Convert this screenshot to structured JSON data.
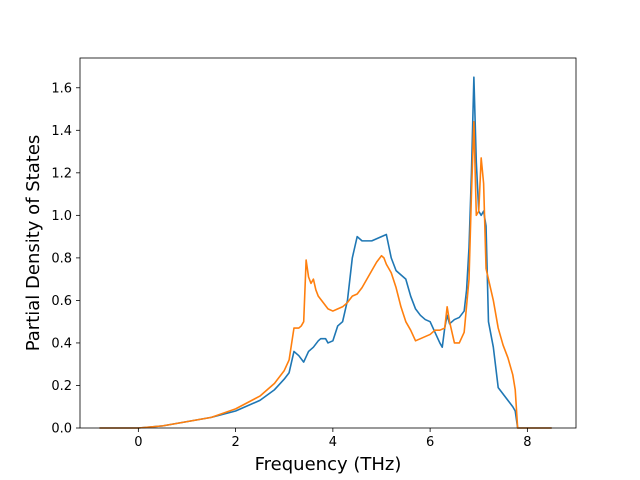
{
  "chart_data": {
    "type": "line",
    "title": "",
    "xlabel": "Frequency (THz)",
    "ylabel": "Partial Density of States",
    "xlim": [
      -1.2,
      9.0
    ],
    "ylim": [
      0.0,
      1.74
    ],
    "xticks": [
      0,
      2,
      4,
      6,
      8
    ],
    "xtick_labels": [
      "0",
      "2",
      "4",
      "6",
      "8"
    ],
    "yticks": [
      0.0,
      0.2,
      0.4,
      0.6,
      0.8,
      1.0,
      1.2,
      1.4,
      1.6
    ],
    "ytick_labels": [
      "0.0",
      "0.2",
      "0.4",
      "0.6",
      "0.8",
      "1.0",
      "1.2",
      "1.4",
      "1.6"
    ],
    "grid": false,
    "legend": "none",
    "series": [
      {
        "color": "#1f77b4",
        "x": [
          -0.8,
          -0.2,
          0.0,
          0.5,
          1.0,
          1.5,
          2.0,
          2.5,
          2.8,
          3.0,
          3.1,
          3.2,
          3.3,
          3.4,
          3.5,
          3.6,
          3.7,
          3.75,
          3.85,
          3.9,
          4.0,
          4.1,
          4.2,
          4.25,
          4.3,
          4.35,
          4.4,
          4.5,
          4.6,
          4.7,
          4.8,
          4.9,
          5.0,
          5.1,
          5.2,
          5.3,
          5.4,
          5.5,
          5.6,
          5.7,
          5.8,
          5.9,
          6.0,
          6.1,
          6.2,
          6.25,
          6.3,
          6.35,
          6.4,
          6.5,
          6.6,
          6.7,
          6.75,
          6.8,
          6.85,
          6.9,
          6.95,
          7.0,
          7.05,
          7.1,
          7.15,
          7.2,
          7.3,
          7.4,
          7.5,
          7.6,
          7.7,
          7.75,
          7.8,
          8.0,
          8.5
        ],
        "y": [
          0.0,
          0.0,
          0.0,
          0.01,
          0.03,
          0.05,
          0.08,
          0.13,
          0.18,
          0.23,
          0.26,
          0.36,
          0.34,
          0.31,
          0.36,
          0.38,
          0.41,
          0.42,
          0.42,
          0.4,
          0.41,
          0.48,
          0.5,
          0.55,
          0.6,
          0.7,
          0.8,
          0.9,
          0.88,
          0.88,
          0.88,
          0.89,
          0.9,
          0.91,
          0.8,
          0.74,
          0.72,
          0.7,
          0.62,
          0.56,
          0.53,
          0.51,
          0.5,
          0.45,
          0.4,
          0.38,
          0.47,
          0.53,
          0.49,
          0.51,
          0.52,
          0.55,
          0.65,
          0.85,
          1.2,
          1.65,
          1.25,
          1.02,
          1.0,
          1.02,
          0.95,
          0.5,
          0.38,
          0.19,
          0.16,
          0.13,
          0.1,
          0.08,
          0.0,
          0.0,
          0.0
        ]
      },
      {
        "color": "#ff7f0e",
        "x": [
          -0.8,
          -0.2,
          0.0,
          0.5,
          1.0,
          1.5,
          2.0,
          2.5,
          2.8,
          3.0,
          3.1,
          3.2,
          3.3,
          3.35,
          3.4,
          3.45,
          3.5,
          3.55,
          3.6,
          3.65,
          3.7,
          3.8,
          3.9,
          4.0,
          4.1,
          4.2,
          4.3,
          4.4,
          4.5,
          4.6,
          4.7,
          4.8,
          4.9,
          5.0,
          5.05,
          5.1,
          5.2,
          5.3,
          5.4,
          5.5,
          5.6,
          5.7,
          5.8,
          5.9,
          6.0,
          6.1,
          6.2,
          6.3,
          6.35,
          6.4,
          6.5,
          6.6,
          6.7,
          6.8,
          6.85,
          6.9,
          6.95,
          7.0,
          7.05,
          7.1,
          7.15,
          7.2,
          7.3,
          7.4,
          7.5,
          7.6,
          7.7,
          7.75,
          7.8,
          8.0,
          8.5
        ],
        "y": [
          0.0,
          0.0,
          0.0,
          0.01,
          0.03,
          0.05,
          0.09,
          0.15,
          0.21,
          0.27,
          0.32,
          0.47,
          0.47,
          0.48,
          0.5,
          0.79,
          0.71,
          0.68,
          0.7,
          0.65,
          0.62,
          0.59,
          0.56,
          0.55,
          0.56,
          0.57,
          0.59,
          0.62,
          0.63,
          0.66,
          0.7,
          0.74,
          0.78,
          0.81,
          0.8,
          0.77,
          0.73,
          0.66,
          0.57,
          0.5,
          0.46,
          0.41,
          0.42,
          0.43,
          0.44,
          0.46,
          0.46,
          0.47,
          0.57,
          0.5,
          0.4,
          0.4,
          0.45,
          0.7,
          1.1,
          1.44,
          1.0,
          1.02,
          1.27,
          1.15,
          0.75,
          0.7,
          0.6,
          0.47,
          0.39,
          0.33,
          0.25,
          0.18,
          0.0,
          0.0,
          0.0
        ]
      }
    ]
  }
}
